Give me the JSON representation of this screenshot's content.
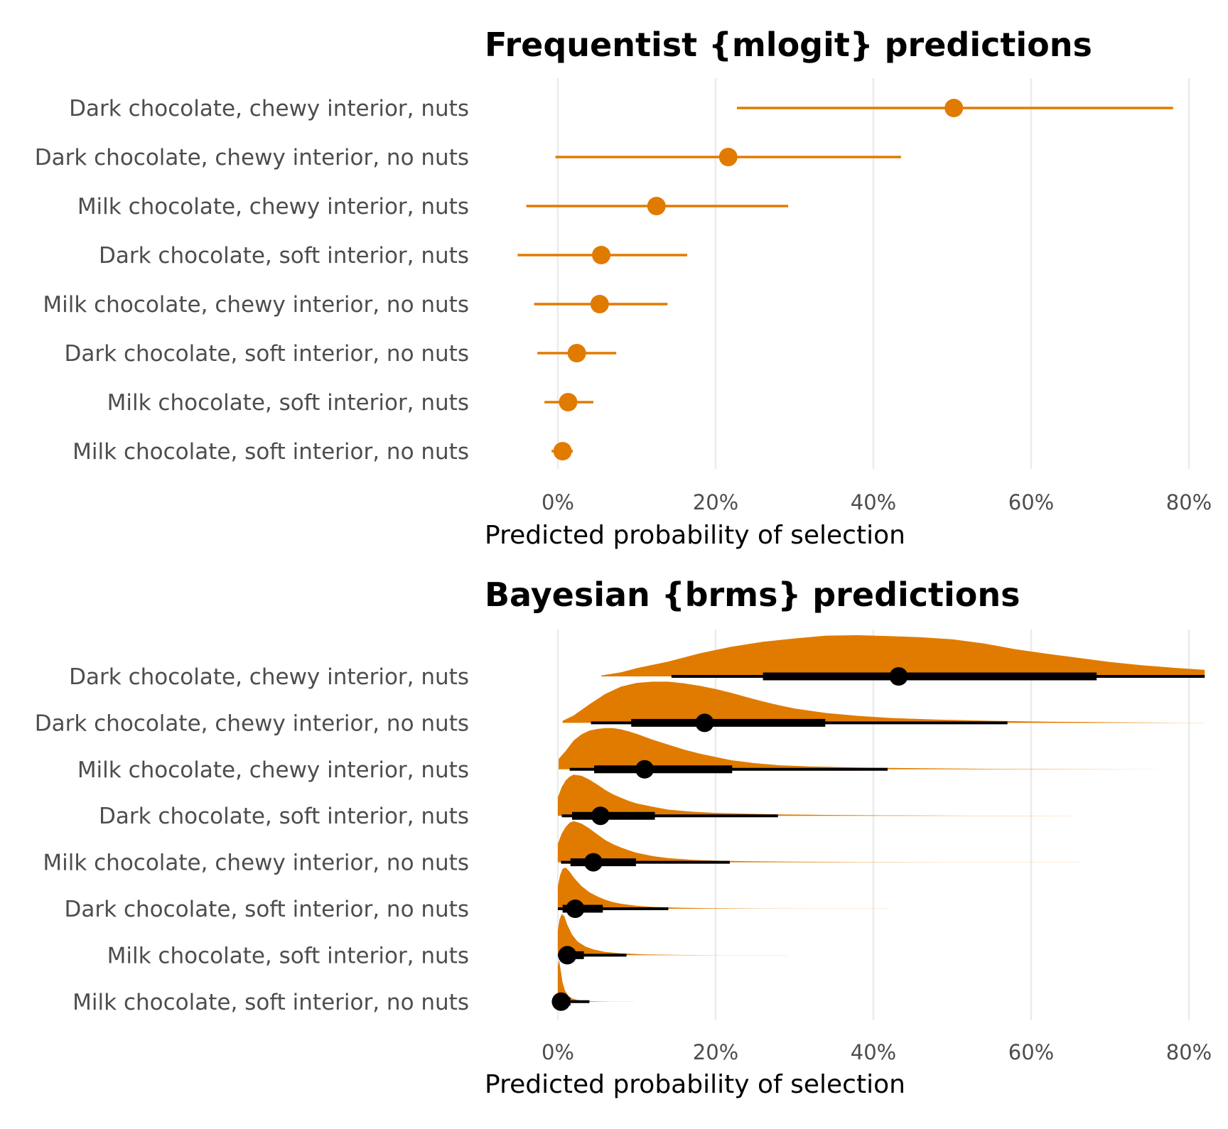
{
  "colors": {
    "accent": "#e07b00",
    "bayes_interval": "#000000",
    "grid": "#ebebeb",
    "label_text": "#4d4d4d"
  },
  "chart_data": [
    {
      "type": "pointrange",
      "title": "Frequentist {mlogit} predictions",
      "xlabel": "Predicted probability of selection",
      "xlim": [
        -10,
        82
      ],
      "x_ticks": [
        0,
        20,
        40,
        60,
        80
      ],
      "x_tick_labels": [
        "0%",
        "20%",
        "40%",
        "60%",
        "80%"
      ],
      "grid": "vertical major",
      "categories": [
        "Dark chocolate, chewy interior, nuts",
        "Dark chocolate, chewy interior, no nuts",
        "Milk chocolate, chewy interior, nuts",
        "Dark chocolate, soft interior, nuts",
        "Milk chocolate, chewy interior, no nuts",
        "Dark chocolate, soft interior, no nuts",
        "Milk chocolate, soft interior, nuts",
        "Milk chocolate, soft interior, no nuts"
      ],
      "estimate": [
        50.2,
        21.6,
        12.5,
        5.5,
        5.3,
        2.4,
        1.3,
        0.6
      ],
      "lower": [
        22.7,
        -0.3,
        -4.0,
        -5.1,
        -3.0,
        -2.6,
        -1.7,
        -0.8
      ],
      "upper": [
        78.0,
        43.5,
        29.2,
        16.4,
        13.9,
        7.4,
        4.5,
        1.9
      ]
    },
    {
      "type": "halfeye",
      "title": "Bayesian {brms} predictions",
      "xlabel": "Predicted probability of selection",
      "xlim": [
        -10,
        82
      ],
      "x_ticks": [
        0,
        20,
        40,
        60,
        80
      ],
      "x_tick_labels": [
        "0%",
        "20%",
        "40%",
        "60%",
        "80%"
      ],
      "grid": "vertical major",
      "categories": [
        "Dark chocolate, chewy interior, nuts",
        "Dark chocolate, chewy interior, no nuts",
        "Milk chocolate, chewy interior, nuts",
        "Dark chocolate, soft interior, nuts",
        "Milk chocolate, chewy interior, no nuts",
        "Dark chocolate, soft interior, no nuts",
        "Milk chocolate, soft interior, nuts",
        "Milk chocolate, soft interior, no nuts"
      ],
      "median": [
        43.2,
        18.6,
        11.0,
        5.4,
        4.5,
        2.2,
        1.2,
        0.4
      ],
      "interval_66": [
        [
          26.0,
          68.3
        ],
        [
          9.3,
          33.9
        ],
        [
          4.6,
          22.1
        ],
        [
          1.8,
          12.3
        ],
        [
          1.6,
          9.9
        ],
        [
          0.6,
          5.7
        ],
        [
          0.3,
          3.3
        ],
        [
          0.0,
          1.6
        ]
      ],
      "interval_95": [
        [
          14.4,
          82.0
        ],
        [
          4.2,
          57.0
        ],
        [
          1.5,
          41.8
        ],
        [
          0.5,
          27.9
        ],
        [
          0.4,
          21.8
        ],
        [
          0.0,
          14.0
        ],
        [
          0.0,
          8.7
        ],
        [
          0.0,
          4.0
        ]
      ],
      "density_curves": [
        {
          "x": [
            5.5,
            8,
            10,
            14,
            18,
            22,
            26,
            30,
            34,
            38,
            42,
            46,
            50,
            54,
            58,
            62,
            66,
            70,
            74,
            78,
            82
          ],
          "d": [
            0.02,
            0.1,
            0.2,
            0.36,
            0.56,
            0.72,
            0.84,
            0.92,
            0.99,
            1.0,
            0.98,
            0.95,
            0.9,
            0.8,
            0.66,
            0.55,
            0.45,
            0.35,
            0.27,
            0.21,
            0.16
          ]
        },
        {
          "x": [
            0.6,
            2,
            4,
            6,
            8,
            10,
            12,
            14,
            16,
            18,
            20,
            22,
            24,
            26,
            28,
            30,
            34,
            38,
            42,
            48,
            55,
            62,
            70,
            78,
            82
          ],
          "d": [
            0.05,
            0.18,
            0.45,
            0.7,
            0.88,
            0.97,
            1.0,
            1.0,
            0.96,
            0.9,
            0.82,
            0.73,
            0.62,
            0.52,
            0.43,
            0.35,
            0.24,
            0.17,
            0.12,
            0.08,
            0.05,
            0.03,
            0.015,
            0.006,
            0.003
          ]
        },
        {
          "x": [
            0.1,
            1,
            2,
            3,
            4,
            5,
            6,
            7,
            8,
            9,
            10,
            12,
            14,
            16,
            18,
            20,
            22,
            25,
            28,
            32,
            38,
            46,
            55,
            66,
            77
          ],
          "d": [
            0.25,
            0.45,
            0.7,
            0.85,
            0.94,
            0.98,
            1.0,
            1.0,
            0.97,
            0.92,
            0.86,
            0.72,
            0.6,
            0.48,
            0.38,
            0.3,
            0.22,
            0.15,
            0.1,
            0.07,
            0.045,
            0.025,
            0.012,
            0.005,
            0.002
          ]
        },
        {
          "x": [
            0.0,
            0.5,
            1,
            1.5,
            2,
            3,
            4,
            5,
            6,
            7,
            8,
            9,
            10,
            12,
            14,
            17,
            20,
            24,
            28,
            34,
            42,
            52,
            65
          ],
          "d": [
            0.45,
            0.7,
            0.86,
            0.95,
            1.0,
            0.97,
            0.88,
            0.76,
            0.63,
            0.52,
            0.44,
            0.36,
            0.3,
            0.22,
            0.15,
            0.1,
            0.07,
            0.05,
            0.035,
            0.02,
            0.01,
            0.004,
            0.001
          ]
        },
        {
          "x": [
            0.0,
            0.5,
            1,
            1.5,
            2,
            3,
            4,
            5,
            6,
            7,
            8,
            9,
            10,
            12,
            14,
            17,
            20,
            24,
            30,
            38,
            50,
            66
          ],
          "d": [
            0.45,
            0.7,
            0.86,
            0.96,
            1.0,
            0.94,
            0.82,
            0.68,
            0.54,
            0.44,
            0.36,
            0.29,
            0.23,
            0.15,
            0.1,
            0.06,
            0.04,
            0.025,
            0.014,
            0.007,
            0.002,
            0.001
          ]
        },
        {
          "x": [
            0.0,
            0.3,
            0.6,
            1,
            1.5,
            2,
            3,
            4,
            5,
            6,
            7,
            8,
            10,
            12,
            15,
            19,
            25,
            33,
            42
          ],
          "d": [
            0.55,
            0.82,
            0.97,
            1.0,
            0.9,
            0.76,
            0.55,
            0.4,
            0.3,
            0.22,
            0.16,
            0.12,
            0.07,
            0.045,
            0.025,
            0.013,
            0.006,
            0.002,
            0.001
          ]
        },
        {
          "x": [
            0.0,
            0.2,
            0.5,
            0.8,
            1.2,
            1.8,
            2.5,
            3.5,
            4.5,
            6,
            8,
            11,
            15,
            21,
            29
          ],
          "d": [
            0.6,
            0.86,
            1.0,
            0.95,
            0.74,
            0.5,
            0.33,
            0.21,
            0.14,
            0.08,
            0.045,
            0.02,
            0.008,
            0.003,
            0.001
          ]
        },
        {
          "x": [
            0.0,
            0.1,
            0.2,
            0.4,
            0.6,
            0.9,
            1.3,
            1.8,
            2.5,
            3.5,
            5,
            7,
            10
          ],
          "d": [
            0.85,
            1.0,
            0.96,
            0.72,
            0.46,
            0.27,
            0.15,
            0.08,
            0.04,
            0.02,
            0.008,
            0.003,
            0.001
          ]
        }
      ]
    }
  ]
}
